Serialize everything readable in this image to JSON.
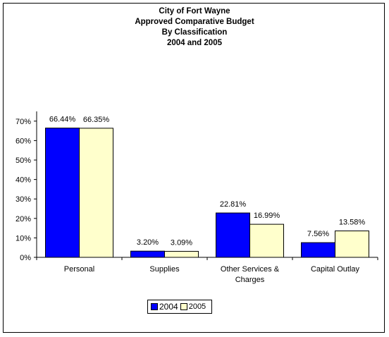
{
  "chart_data": {
    "type": "bar",
    "title_lines": [
      "City of Fort Wayne",
      "Approved Comparative Budget",
      "By Classification",
      "2004 and 2005"
    ],
    "categories": [
      [
        "Personal"
      ],
      [
        "Supplies"
      ],
      [
        "Other Services &",
        "Charges"
      ],
      [
        "Capital Outlay"
      ]
    ],
    "series": [
      {
        "name": "2004",
        "color": "#0000ff",
        "values": [
          66.44,
          3.2,
          22.81,
          7.56
        ],
        "labels": [
          "66.44%",
          "3.20%",
          "22.81%",
          "7.56%"
        ]
      },
      {
        "name": "2005",
        "color": "#ffffcc",
        "values": [
          66.35,
          3.09,
          16.99,
          13.58
        ],
        "labels": [
          "66.35%",
          "3.09%",
          "16.99%",
          "13.58%"
        ]
      }
    ],
    "yticks": [
      "0%",
      "10%",
      "20%",
      "30%",
      "40%",
      "50%",
      "60%",
      "70%"
    ],
    "ylim": [
      0,
      75
    ],
    "grid": false,
    "legend": "bottom"
  },
  "legend": {
    "label_2004": "2004",
    "label_2005": "2005"
  }
}
